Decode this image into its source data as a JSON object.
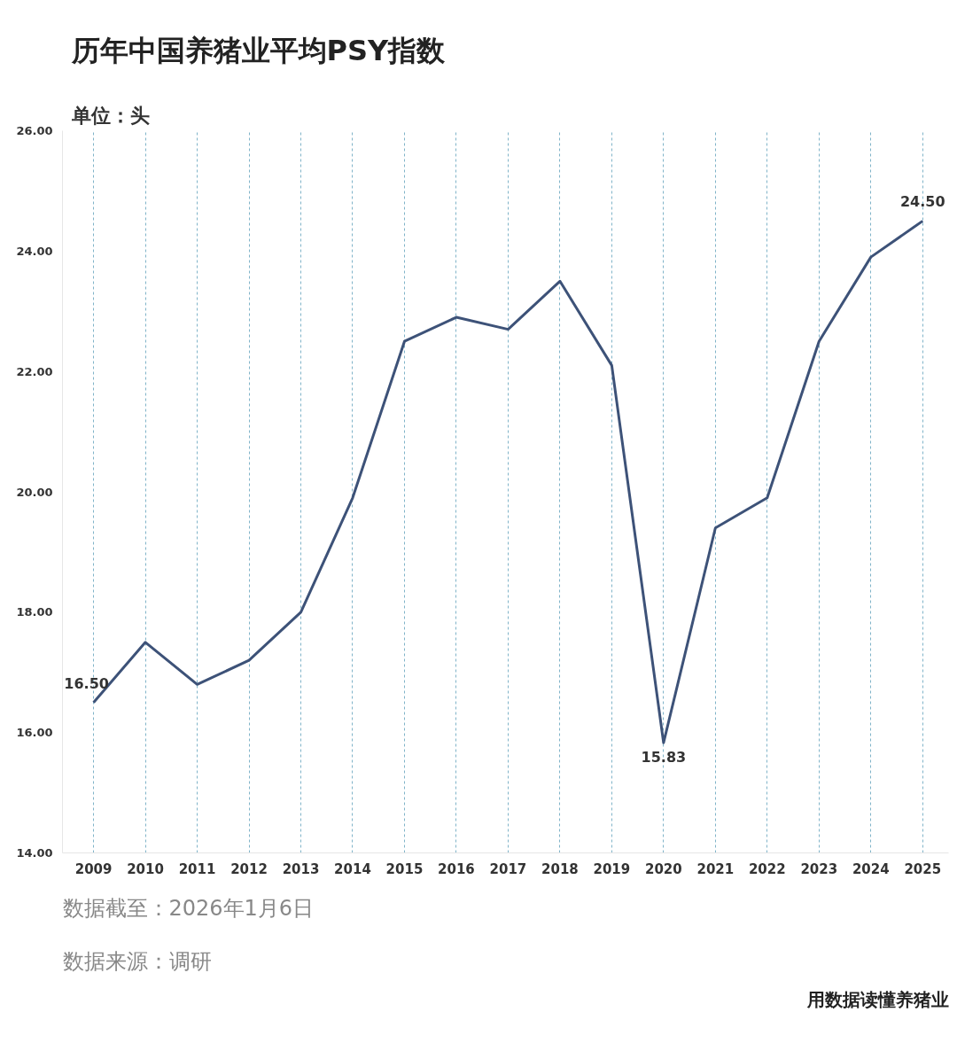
{
  "chart_data": {
    "type": "line",
    "title": "历年中国养猪业平均PSY指数",
    "subtitle": "单位：头",
    "categories": [
      "2009",
      "2010",
      "2011",
      "2012",
      "2013",
      "2014",
      "2015",
      "2016",
      "2017",
      "2018",
      "2019",
      "2020",
      "2021",
      "2022",
      "2023",
      "2024",
      "2025"
    ],
    "series": [
      {
        "color": "#3d5278",
        "values": [
          16.5,
          17.5,
          16.8,
          17.2,
          18.0,
          19.9,
          22.5,
          22.9,
          22.7,
          23.5,
          22.1,
          15.83,
          19.4,
          19.9,
          22.5,
          23.9,
          24.5
        ],
        "value_labels": [
          "16.50",
          null,
          null,
          null,
          null,
          null,
          null,
          null,
          null,
          null,
          null,
          "15.83",
          null,
          null,
          null,
          null,
          "24.50"
        ]
      }
    ],
    "ylim": [
      14,
      26
    ],
    "yticks": [
      {
        "value": 14,
        "label": "14.00"
      },
      {
        "value": 16,
        "label": "16.00"
      },
      {
        "value": 18,
        "label": "18.00"
      },
      {
        "value": 20,
        "label": "20.00"
      },
      {
        "value": 22,
        "label": "22.00"
      },
      {
        "value": 24,
        "label": "24.00"
      },
      {
        "value": 26,
        "label": "26.00"
      }
    ],
    "grid": "x",
    "marker": "none",
    "line_style": "solid",
    "annotations": [
      "数据截至：2026年1月6日",
      "数据来源：调研",
      "用数据读懂养猪业"
    ]
  }
}
